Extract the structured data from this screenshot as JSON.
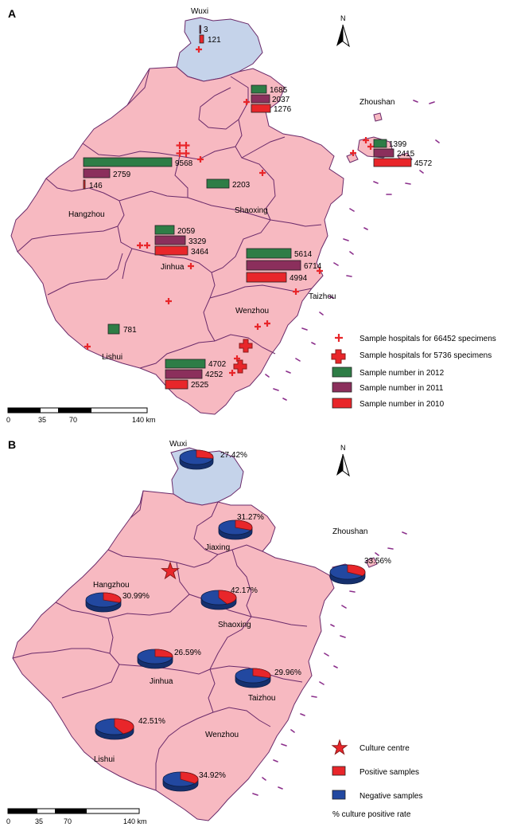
{
  "panel_a": {
    "label": "A",
    "regions": {
      "wuxi": "Wuxi",
      "zhoushan": "Zhoushan",
      "hangzhou": "Hangzhou",
      "shaoxing": "Shaoxing",
      "jinhua": "Jinhua",
      "taizhou": "Taizhou",
      "wenzhou": "Wenzhou",
      "lishui": "Lishui"
    },
    "north": "N",
    "bar_values": {
      "wuxi_2011": "3",
      "wuxi_2010": "121",
      "jiaxing_2012": "1685",
      "jiaxing_2011": "2037",
      "jiaxing_2010": "1276",
      "zhoushan_2012": "1399",
      "zhoushan_2011": "2415",
      "zhoushan_2010": "4572",
      "hangzhou_2012": "9568",
      "hangzhou_2011": "2759",
      "hangzhou_2010": "146",
      "shaoxing_2012": "2203",
      "jinhua_2012": "2059",
      "jinhua_2011": "3329",
      "jinhua_2010": "3464",
      "taizhou_2012": "5614",
      "taizhou_2011": "6714",
      "taizhou_2010": "4994",
      "lishui_2012": "781",
      "wenzhou_2012": "4702",
      "wenzhou_2011": "4252",
      "wenzhou_2010": "2525"
    },
    "legend": {
      "small_cross": "Sample hospitals for 66452 specimens",
      "big_cross": "Sample hospitals for 5736 specimens",
      "y2012": "Sample number in 2012",
      "y2011": "Sample number in 2011",
      "y2010": "Sample number in 2010"
    },
    "scale": {
      "t0": "0",
      "t1": "35",
      "t2": "70",
      "t3": "140 km"
    }
  },
  "panel_b": {
    "label": "B",
    "regions": {
      "wuxi": "Wuxi",
      "jiaxing": "Jiaxing",
      "zhoushan": "Zhoushan",
      "hangzhou": "Hangzhou",
      "shaoxing": "Shaoxing",
      "jinhua": "Jinhua",
      "taizhou": "Taizhou",
      "lishui": "Lishui",
      "wenzhou": "Wenzhou"
    },
    "north": "N",
    "rates": {
      "wuxi": "27.42%",
      "jiaxing": "31.27%",
      "zhoushan": "33.56%",
      "hangzhou": "30.99%",
      "shaoxing": "42.17%",
      "jinhua": "26.59%",
      "taizhou": "29.96%",
      "lishui": "42.51%",
      "wenzhou": "34.92%"
    },
    "legend": {
      "culture": "Culture centre",
      "positive": "Positive samples",
      "negative": "Negative samples",
      "rate": "% culture positive rate"
    },
    "scale": {
      "t0": "0",
      "t1": "35",
      "t2": "70",
      "t3": "140 km"
    }
  },
  "colors": {
    "land": "#f7b9c1",
    "border": "#6a2a6a",
    "wuxi_land": "#c5d3ea",
    "y2012": "#2e7d46",
    "y2011": "#8b2f5c",
    "y2010": "#e8262a",
    "cross": "#e8262a",
    "negative": "#2248a0",
    "positive": "#e8262a"
  },
  "fractions": {
    "wuxi": 0.2742,
    "jiaxing": 0.3127,
    "zhoushan": 0.3356,
    "hangzhou": 0.3099,
    "shaoxing": 0.4217,
    "jinhua": 0.2659,
    "taizhou": 0.2996,
    "lishui": 0.4251,
    "wenzhou": 0.3492
  }
}
